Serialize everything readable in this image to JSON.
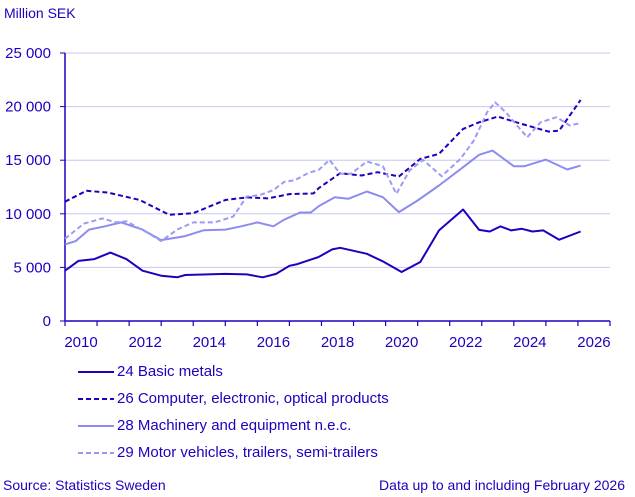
{
  "chart_data": {
    "type": "line",
    "ylabel": "Million SEK",
    "ylim": [
      0,
      25000
    ],
    "xlim": [
      "2010-01",
      "2027-01"
    ],
    "yticks": [
      0,
      5000,
      10000,
      15000,
      20000,
      25000
    ],
    "ytick_labels": [
      "0",
      "5 000",
      "10 000",
      "15 000",
      "20 000",
      "25 000"
    ],
    "xtick_labels": [
      "2010",
      "2012",
      "2014",
      "2016",
      "2018",
      "2020",
      "2022",
      "2024",
      "2026"
    ],
    "grid": "horizontal",
    "legend_placement": "bottom-left",
    "series": [
      {
        "name": "24 Basic metals",
        "color": "#1e00be",
        "dash": "solid",
        "points": [
          [
            "2010-01",
            4690
          ],
          [
            "2010-06",
            5610
          ],
          [
            "2010-12",
            5770
          ],
          [
            "2011-06",
            6380
          ],
          [
            "2011-12",
            5770
          ],
          [
            "2012-06",
            4690
          ],
          [
            "2013-01",
            4230
          ],
          [
            "2013-07",
            4080
          ],
          [
            "2013-10",
            4290
          ],
          [
            "2015-01",
            4390
          ],
          [
            "2015-09",
            4350
          ],
          [
            "2016-03",
            4080
          ],
          [
            "2016-08",
            4390
          ],
          [
            "2017-01",
            5150
          ],
          [
            "2017-04",
            5310
          ],
          [
            "2017-12",
            5980
          ],
          [
            "2018-05",
            6680
          ],
          [
            "2018-08",
            6830
          ],
          [
            "2019-06",
            6270
          ],
          [
            "2019-12",
            5560
          ],
          [
            "2020-07",
            4570
          ],
          [
            "2021-02",
            5500
          ],
          [
            "2021-09",
            8450
          ],
          [
            "2022-06",
            10400
          ],
          [
            "2022-12",
            8500
          ],
          [
            "2023-04",
            8350
          ],
          [
            "2023-08",
            8820
          ],
          [
            "2023-12",
            8450
          ],
          [
            "2024-04",
            8600
          ],
          [
            "2024-08",
            8350
          ],
          [
            "2024-12",
            8450
          ],
          [
            "2025-06",
            7580
          ],
          [
            "2026-02",
            8350
          ]
        ]
      },
      {
        "name": "26 Computer, electronic, optical products",
        "color": "#1e00be",
        "dash": "dashed",
        "points": [
          [
            "2010-01",
            11130
          ],
          [
            "2010-09",
            12150
          ],
          [
            "2011-05",
            11990
          ],
          [
            "2012-05",
            11290
          ],
          [
            "2013-04",
            9910
          ],
          [
            "2014-01",
            10060
          ],
          [
            "2015-01",
            11290
          ],
          [
            "2015-09",
            11530
          ],
          [
            "2016-05",
            11440
          ],
          [
            "2017-01",
            11840
          ],
          [
            "2017-10",
            11900
          ],
          [
            "2017-12",
            12400
          ],
          [
            "2018-08",
            13790
          ],
          [
            "2019-04",
            13570
          ],
          [
            "2019-10",
            13880
          ],
          [
            "2020-06",
            13480
          ],
          [
            "2021-02",
            15120
          ],
          [
            "2021-09",
            15590
          ],
          [
            "2022-06",
            17920
          ],
          [
            "2022-12",
            18540
          ],
          [
            "2023-07",
            19070
          ],
          [
            "2024-03",
            18450
          ],
          [
            "2025-02",
            17670
          ],
          [
            "2025-06",
            17760
          ],
          [
            "2026-02",
            20620
          ]
        ]
      },
      {
        "name": "28 Machinery and equipment n.e.c.",
        "color": "#8c8cf0",
        "dash": "solid",
        "points": [
          [
            "2010-01",
            7150
          ],
          [
            "2010-05",
            7450
          ],
          [
            "2010-10",
            8530
          ],
          [
            "2011-04",
            8830
          ],
          [
            "2011-10",
            9200
          ],
          [
            "2012-06",
            8530
          ],
          [
            "2013-01",
            7550
          ],
          [
            "2013-10",
            7920
          ],
          [
            "2014-05",
            8470
          ],
          [
            "2015-01",
            8530
          ],
          [
            "2015-07",
            8830
          ],
          [
            "2016-01",
            9200
          ],
          [
            "2016-07",
            8830
          ],
          [
            "2016-11",
            9450
          ],
          [
            "2017-05",
            10120
          ],
          [
            "2017-09",
            10120
          ],
          [
            "2017-12",
            10720
          ],
          [
            "2018-06",
            11550
          ],
          [
            "2018-11",
            11400
          ],
          [
            "2019-06",
            12080
          ],
          [
            "2019-12",
            11550
          ],
          [
            "2020-06",
            10160
          ],
          [
            "2021-01",
            11240
          ],
          [
            "2021-09",
            12640
          ],
          [
            "2022-06",
            14350
          ],
          [
            "2022-12",
            15500
          ],
          [
            "2023-05",
            15900
          ],
          [
            "2024-01",
            14440
          ],
          [
            "2024-05",
            14440
          ],
          [
            "2025-01",
            15060
          ],
          [
            "2025-09",
            14130
          ],
          [
            "2026-02",
            14500
          ]
        ]
      },
      {
        "name": "29 Motor vehicles, trailers, semi-trailers",
        "color": "#9b9bf5",
        "dash": "dashed",
        "points": [
          [
            "2010-01",
            7670
          ],
          [
            "2010-08",
            9080
          ],
          [
            "2011-03",
            9570
          ],
          [
            "2011-08",
            9200
          ],
          [
            "2011-12",
            9300
          ],
          [
            "2012-08",
            8220
          ],
          [
            "2013-01",
            7450
          ],
          [
            "2013-07",
            8530
          ],
          [
            "2014-01",
            9200
          ],
          [
            "2014-09",
            9200
          ],
          [
            "2015-04",
            9750
          ],
          [
            "2015-09",
            11600
          ],
          [
            "2016-02",
            11750
          ],
          [
            "2016-07",
            12210
          ],
          [
            "2016-11",
            12980
          ],
          [
            "2017-03",
            13130
          ],
          [
            "2017-08",
            13800
          ],
          [
            "2017-12",
            14100
          ],
          [
            "2018-04",
            15030
          ],
          [
            "2018-08",
            13730
          ],
          [
            "2018-12",
            13730
          ],
          [
            "2019-06",
            14880
          ],
          [
            "2019-12",
            14440
          ],
          [
            "2020-05",
            11860
          ],
          [
            "2020-10",
            14040
          ],
          [
            "2021-03",
            15030
          ],
          [
            "2021-10",
            13510
          ],
          [
            "2022-05",
            15120
          ],
          [
            "2022-10",
            16830
          ],
          [
            "2023-03",
            19470
          ],
          [
            "2023-06",
            20400
          ],
          [
            "2023-10",
            19470
          ],
          [
            "2024-06",
            17140
          ],
          [
            "2024-11",
            18540
          ],
          [
            "2025-05",
            19010
          ],
          [
            "2025-10",
            18230
          ],
          [
            "2026-02",
            18480
          ]
        ]
      }
    ]
  },
  "header": {
    "unit_label": "Million SEK"
  },
  "footer": {
    "source": "Source: Statistics Sweden",
    "note": "Data up to and including February 2026"
  }
}
